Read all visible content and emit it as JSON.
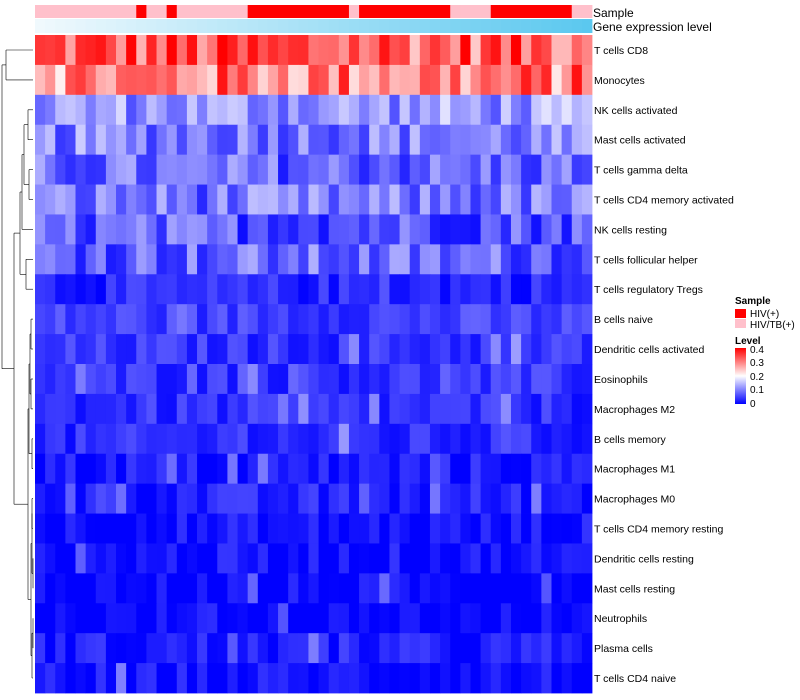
{
  "chart_data": {
    "type": "heatmap",
    "n_columns": 55,
    "rows": [
      "T cells CD8",
      "Monocytes",
      "NK cells activated",
      "Mast cells activated",
      "T cells gamma delta",
      "T cells CD4 memory activated",
      "NK cells resting",
      "T cells follicular helper",
      "T cells regulatory  Tregs",
      "B cells naive",
      "Dendritic cells activated",
      "Eosinophils",
      "Macrophages M2",
      "B cells memory",
      "Macrophages M1",
      "Macrophages M0",
      "T cells CD4 memory resting",
      "Dendritic cells resting",
      "Mast cells resting",
      "Neutrophils",
      "Plasma cells",
      "T cells CD4 naive"
    ],
    "row_base_levels": [
      0.33,
      0.3,
      0.12,
      0.1,
      0.08,
      0.09,
      0.07,
      0.08,
      0.03,
      0.05,
      0.04,
      0.04,
      0.035,
      0.03,
      0.02,
      0.025,
      0.012,
      0.012,
      0.005,
      0.002,
      0.02,
      0.012
    ],
    "column_sample_groups": [
      "HIV/TB(+)",
      "HIV/TB(+)",
      "HIV/TB(+)",
      "HIV/TB(+)",
      "HIV/TB(+)",
      "HIV/TB(+)",
      "HIV/TB(+)",
      "HIV/TB(+)",
      "HIV/TB(+)",
      "HIV/TB(+)",
      "HIV(+)",
      "HIV/TB(+)",
      "HIV/TB(+)",
      "HIV(+)",
      "HIV/TB(+)",
      "HIV/TB(+)",
      "HIV/TB(+)",
      "HIV/TB(+)",
      "HIV/TB(+)",
      "HIV/TB(+)",
      "HIV/TB(+)",
      "HIV(+)",
      "HIV(+)",
      "HIV(+)",
      "HIV(+)",
      "HIV(+)",
      "HIV(+)",
      "HIV(+)",
      "HIV(+)",
      "HIV(+)",
      "HIV(+)",
      "HIV/TB(+)",
      "HIV(+)",
      "HIV(+)",
      "HIV(+)",
      "HIV(+)",
      "HIV(+)",
      "HIV(+)",
      "HIV(+)",
      "HIV(+)",
      "HIV(+)",
      "HIV/TB(+)",
      "HIV/TB(+)",
      "HIV/TB(+)",
      "HIV/TB(+)",
      "HIV(+)",
      "HIV(+)",
      "HIV(+)",
      "HIV(+)",
      "HIV(+)",
      "HIV(+)",
      "HIV(+)",
      "HIV(+)",
      "HIV/TB(+)",
      "HIV/TB(+)"
    ],
    "annotation_rows": [
      "Sample",
      "Gene expression level"
    ],
    "legend_sample": {
      "title": "Sample",
      "entries": [
        {
          "label": "HIV(+)",
          "color": "#ff0000"
        },
        {
          "label": "HIV/TB(+)",
          "color": "#ffc0cb"
        }
      ]
    },
    "legend_level": {
      "title": "Level",
      "ticks": [
        "0.4",
        "0.3",
        "0.2",
        "0.1",
        "0"
      ],
      "range": [
        0,
        0.4
      ],
      "colors": [
        "#0000ff",
        "#ffffff",
        "#ff0000"
      ]
    },
    "expression_gradient": [
      "#f0f9fd",
      "#5bc8ef"
    ]
  }
}
